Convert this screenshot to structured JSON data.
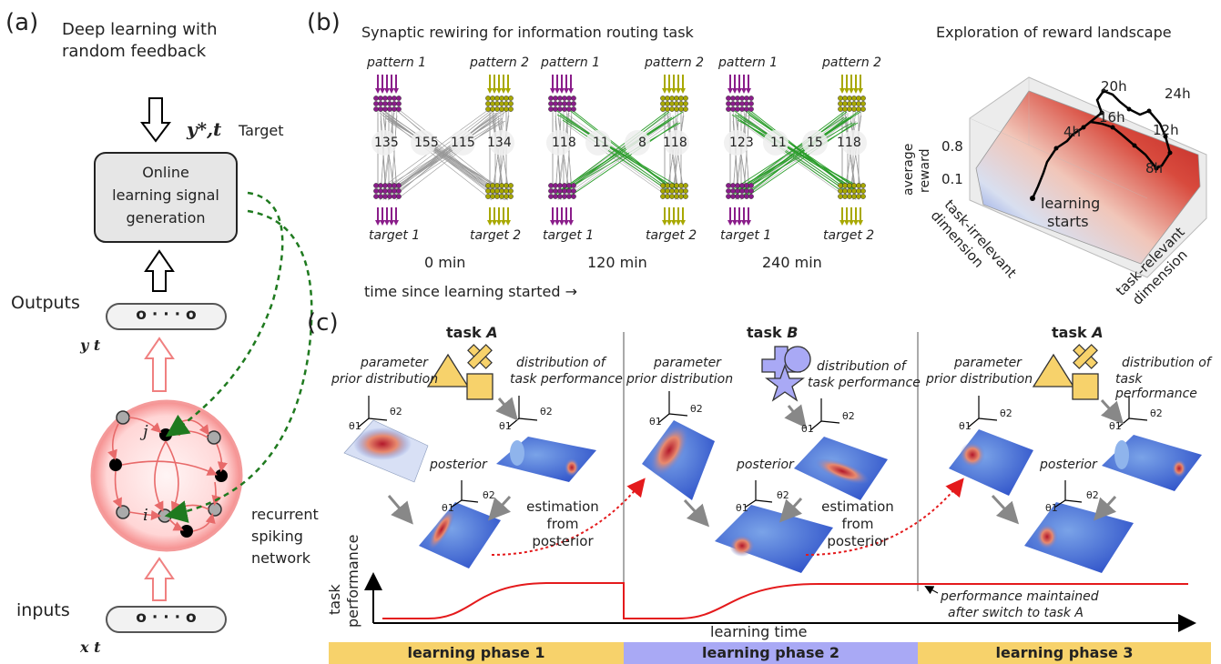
{
  "panel_a": {
    "letter": "(a)",
    "title_line1": "Deep learning with",
    "title_line2": "random feedback",
    "target_symbol": "y*,t",
    "target_label": "Target",
    "box_line1": "Online",
    "box_line2": "learning signal",
    "box_line3": "generation",
    "outputs_label": "Outputs",
    "output_dots": "o  · · ·  o",
    "output_symbol": "y t",
    "neuron_j": "j",
    "neuron_i": "i",
    "network_line1": "recurrent",
    "network_line2": "spiking",
    "network_line3": "network",
    "inputs_label": "inputs",
    "input_dots": "o  · · ·  o",
    "input_symbol": "x t"
  },
  "panel_b": {
    "letter": "(b)",
    "title": "Synaptic rewiring for information routing task",
    "networks": [
      {
        "pattern1": "pattern 1",
        "pattern2": "pattern 2",
        "target1": "target 1",
        "target2": "target 2",
        "counts": [
          "135",
          "155",
          "115",
          "134"
        ],
        "time": "0 min"
      },
      {
        "pattern1": "pattern 1",
        "pattern2": "pattern 2",
        "target1": "target 1",
        "target2": "target 2",
        "counts": [
          "118",
          "11",
          "8",
          "118"
        ],
        "time": "120 min"
      },
      {
        "pattern1": "pattern 1",
        "pattern2": "pattern 2",
        "target1": "target 1",
        "target2": "target 2",
        "counts": [
          "123",
          "11",
          "15",
          "118"
        ],
        "time": "240 min"
      }
    ],
    "time_axis_label": "time since learning started →",
    "landscape": {
      "title": "Exploration of reward landscape",
      "ylabel_line1": "average",
      "ylabel_line2": "reward",
      "tick_high": "0.8",
      "tick_low": "0.1",
      "x1_line1": "task-irrelevant",
      "x1_line2": "dimension",
      "x2_line1": "task-relevant",
      "x2_line2": "dimension",
      "start_line1": "learning",
      "start_line2": "starts",
      "time_marks": [
        "20h",
        "24h",
        "16h",
        "4h",
        "12h",
        "8h"
      ]
    }
  },
  "panel_c": {
    "letter": "(c)",
    "phases": [
      {
        "task_word": "task",
        "task_letter": "A",
        "prior_line1": "parameter",
        "prior_line2": "prior distribution",
        "perf_line1": "distribution of",
        "perf_line2": "task performance",
        "posterior": "posterior",
        "est_line1": "estimation",
        "est_line2": "from",
        "est_line3": "posterior",
        "bar_label": "learning phase 1"
      },
      {
        "task_word": "task",
        "task_letter": "B",
        "prior_line1": "parameter",
        "prior_line2": "prior distribution",
        "perf_line1": "distribution of",
        "perf_line2": "task performance",
        "posterior": "posterior",
        "est_line1": "estimation",
        "est_line2": "from",
        "est_line3": "posterior",
        "bar_label": "learning phase 2"
      },
      {
        "task_word": "task",
        "task_letter": "A",
        "prior_line1": "parameter",
        "prior_line2": "prior distribution",
        "perf_line1": "distribution of",
        "perf_line2": "task performance",
        "posterior": "posterior",
        "est_line1": "",
        "est_line2": "",
        "est_line3": "",
        "bar_label": "learning phase 3"
      }
    ],
    "axis_theta1": "θ1",
    "axis_theta2": "θ2",
    "ylabel_line1": "task",
    "ylabel_line2": "performance",
    "xlabel": "learning time",
    "annotation_line1": "performance maintained",
    "annotation_line2": "after switch to task A",
    "colors": {
      "red": "#e41a1c",
      "green": "#2a9d2a",
      "gold": "#f7d26b",
      "lavender": "#a9a9f5",
      "purple": "#8a1d8a",
      "olive": "#a8a800"
    }
  }
}
